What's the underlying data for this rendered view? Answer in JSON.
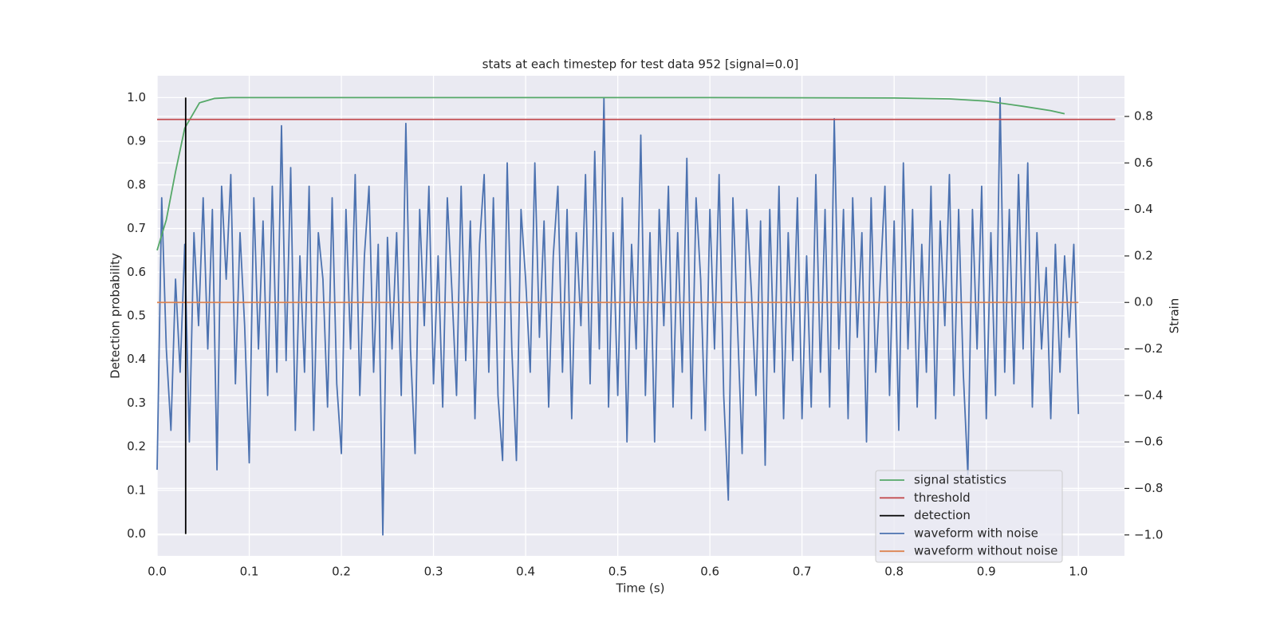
{
  "chart_data": {
    "type": "line",
    "title": "stats at each timestep for test data 952 [signal=0.0]",
    "x_label": "Time (s)",
    "y_label": "Detection probability",
    "y2_label": "Strain",
    "xlim": [
      0,
      1.05
    ],
    "ylim": [
      -0.05,
      1.05
    ],
    "y2lim": [
      -1.09,
      0.975
    ],
    "xticks": [
      {
        "value": 0,
        "label": "0.0"
      },
      0.1,
      0.2,
      0.3,
      0.4,
      0.5,
      0.6,
      0.7,
      0.8,
      0.9,
      {
        "value": 1,
        "label": "1.0"
      }
    ],
    "yticks": [
      {
        "value": 0,
        "label": "0.0"
      },
      0.1,
      0.2,
      0.3,
      0.4,
      0.5,
      0.6,
      0.7,
      0.8,
      0.9,
      {
        "value": 1,
        "label": "1.0"
      }
    ],
    "y2ticks": [
      {
        "value": -1,
        "label": "−1.0"
      },
      {
        "value": -0.8,
        "label": "−0.8"
      },
      {
        "value": -0.6,
        "label": "−0.6"
      },
      {
        "value": -0.4,
        "label": "−0.4"
      },
      {
        "value": -0.2,
        "label": "−0.2"
      },
      {
        "value": 0,
        "label": "0.0"
      },
      0.2,
      0.4,
      0.6,
      0.8
    ],
    "grid": true,
    "legend_position": "lower right",
    "series": [
      {
        "name": "signal statistics",
        "color": "#55a868",
        "axis": "y",
        "x": [
          0,
          0.01,
          0.02,
          0.03,
          0.046,
          0.062,
          0.08,
          0.2,
          0.4,
          0.6,
          0.8,
          0.86,
          0.9,
          0.94,
          0.97,
          0.985
        ],
        "values": [
          0.65,
          0.72,
          0.83,
          0.93,
          0.988,
          0.998,
          1.0,
          1.0,
          1.0,
          1.0,
          0.999,
          0.997,
          0.992,
          0.98,
          0.97,
          0.963
        ]
      },
      {
        "name": "threshold",
        "color": "#c44e52",
        "axis": "y",
        "x": [
          0,
          1.04
        ],
        "values": [
          0.95,
          0.95
        ]
      },
      {
        "name": "detection",
        "color": "#000000",
        "axis": "y",
        "x": [
          0.031,
          0.031
        ],
        "values": [
          0,
          1
        ]
      },
      {
        "name": "waveform with noise",
        "color": "#4c72b0",
        "axis": "y2",
        "x": [
          0,
          0.005,
          0.01,
          0.015,
          0.02,
          0.025,
          0.03,
          0.035,
          0.04,
          0.045,
          0.05,
          0.055,
          0.06,
          0.065,
          0.07,
          0.075,
          0.08,
          0.085,
          0.09,
          0.095,
          0.1,
          0.105,
          0.11,
          0.115,
          0.12,
          0.125,
          0.13,
          0.135,
          0.14,
          0.145,
          0.15,
          0.155,
          0.16,
          0.165,
          0.17,
          0.175,
          0.18,
          0.185,
          0.19,
          0.195,
          0.2,
          0.205,
          0.21,
          0.215,
          0.22,
          0.225,
          0.23,
          0.235,
          0.24,
          0.245,
          0.25,
          0.255,
          0.26,
          0.265,
          0.27,
          0.275,
          0.28,
          0.285,
          0.29,
          0.295,
          0.3,
          0.305,
          0.31,
          0.315,
          0.32,
          0.325,
          0.33,
          0.335,
          0.34,
          0.345,
          0.35,
          0.355,
          0.36,
          0.365,
          0.37,
          0.375,
          0.38,
          0.385,
          0.39,
          0.395,
          0.4,
          0.405,
          0.41,
          0.415,
          0.42,
          0.425,
          0.43,
          0.435,
          0.44,
          0.445,
          0.45,
          0.455,
          0.46,
          0.465,
          0.47,
          0.475,
          0.48,
          0.485,
          0.49,
          0.495,
          0.5,
          0.505,
          0.51,
          0.515,
          0.52,
          0.525,
          0.53,
          0.535,
          0.54,
          0.545,
          0.55,
          0.555,
          0.56,
          0.565,
          0.57,
          0.575,
          0.58,
          0.585,
          0.59,
          0.595,
          0.6,
          0.605,
          0.61,
          0.615,
          0.62,
          0.625,
          0.63,
          0.635,
          0.64,
          0.645,
          0.65,
          0.655,
          0.66,
          0.665,
          0.67,
          0.675,
          0.68,
          0.685,
          0.69,
          0.695,
          0.7,
          0.705,
          0.71,
          0.715,
          0.72,
          0.725,
          0.73,
          0.735,
          0.74,
          0.745,
          0.75,
          0.755,
          0.76,
          0.765,
          0.77,
          0.775,
          0.78,
          0.785,
          0.79,
          0.795,
          0.8,
          0.805,
          0.81,
          0.815,
          0.82,
          0.825,
          0.83,
          0.835,
          0.84,
          0.845,
          0.85,
          0.855,
          0.86,
          0.865,
          0.87,
          0.875,
          0.88,
          0.885,
          0.89,
          0.895,
          0.9,
          0.905,
          0.91,
          0.915,
          0.92,
          0.925,
          0.93,
          0.935,
          0.94,
          0.945,
          0.95,
          0.955,
          0.96,
          0.965,
          0.97,
          0.975,
          0.98,
          0.985,
          0.99,
          0.995,
          1.0
        ],
        "values": [
          -0.72,
          0.45,
          -0.2,
          -0.55,
          0.1,
          -0.3,
          0.25,
          -0.6,
          0.3,
          -0.1,
          0.45,
          -0.2,
          0.4,
          -0.72,
          0.5,
          0.1,
          0.55,
          -0.35,
          0.3,
          -0.1,
          -0.69,
          0.45,
          -0.2,
          0.35,
          -0.4,
          0.5,
          -0.3,
          0.76,
          -0.25,
          0.58,
          -0.55,
          0.2,
          -0.3,
          0.5,
          -0.55,
          0.3,
          0.1,
          -0.45,
          0.45,
          -0.35,
          -0.65,
          0.4,
          -0.2,
          0.55,
          -0.4,
          0.2,
          0.5,
          -0.3,
          0.25,
          -1.0,
          0.28,
          -0.2,
          0.3,
          -0.4,
          0.77,
          -0.2,
          -0.65,
          0.4,
          -0.1,
          0.5,
          -0.35,
          0.2,
          -0.45,
          0.45,
          0.05,
          -0.4,
          0.5,
          -0.25,
          0.35,
          -0.5,
          0.25,
          0.55,
          -0.3,
          0.45,
          -0.4,
          -0.68,
          0.6,
          -0.2,
          -0.68,
          0.4,
          0.1,
          -0.3,
          0.6,
          -0.15,
          0.35,
          -0.45,
          0.2,
          0.5,
          -0.3,
          0.4,
          -0.5,
          0.3,
          -0.1,
          0.55,
          -0.35,
          0.65,
          -0.2,
          0.88,
          -0.45,
          0.3,
          -0.4,
          0.45,
          -0.6,
          0.25,
          -0.2,
          0.72,
          -0.4,
          0.3,
          -0.6,
          0.4,
          -0.1,
          0.5,
          -0.45,
          0.3,
          -0.3,
          0.62,
          -0.5,
          0.45,
          0.1,
          -0.55,
          0.4,
          -0.2,
          0.55,
          -0.4,
          -0.85,
          0.45,
          -0.1,
          -0.65,
          0.4,
          0.05,
          -0.4,
          0.35,
          -0.7,
          0.4,
          -0.3,
          0.5,
          -0.5,
          0.3,
          -0.25,
          0.45,
          -0.5,
          0.2,
          -0.45,
          0.55,
          -0.3,
          0.4,
          -0.45,
          0.79,
          -0.2,
          0.4,
          -0.5,
          0.45,
          -0.15,
          0.3,
          -0.6,
          0.45,
          -0.3,
          0.1,
          0.5,
          -0.4,
          0.35,
          -0.55,
          0.6,
          -0.2,
          0.4,
          -0.45,
          0.25,
          -0.3,
          0.5,
          -0.5,
          0.35,
          -0.1,
          0.55,
          -0.4,
          0.4,
          -0.3,
          -0.74,
          0.4,
          -0.2,
          0.5,
          -0.5,
          0.3,
          -0.4,
          0.88,
          -0.3,
          0.4,
          -0.35,
          0.55,
          -0.2,
          0.6,
          -0.45,
          0.3,
          -0.2,
          0.15,
          -0.5,
          0.25,
          -0.3,
          0.2,
          -0.15,
          0.25,
          -0.48
        ]
      },
      {
        "name": "waveform without noise",
        "color": "#dd8452",
        "axis": "y2",
        "x": [
          0,
          1.0
        ],
        "values": [
          0,
          0
        ]
      }
    ]
  }
}
